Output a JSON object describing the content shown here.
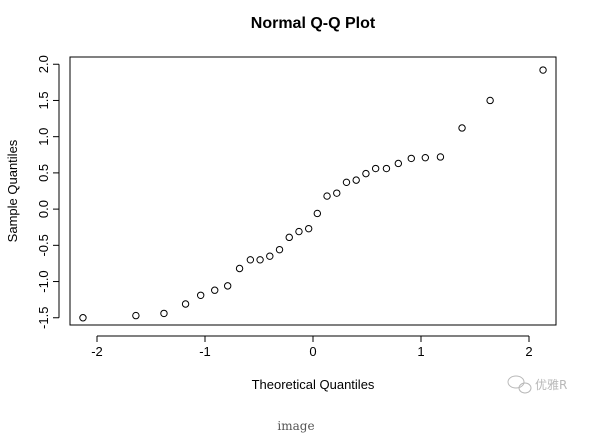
{
  "chart_data": {
    "type": "scatter",
    "title": "Normal Q-Q Plot",
    "xlabel": "Theoretical Quantiles",
    "ylabel": "Sample Quantiles",
    "xlim": [
      -2.25,
      2.25
    ],
    "ylim": [
      -1.6,
      2.1
    ],
    "xticks": [
      -2,
      -1,
      0,
      1,
      2
    ],
    "yticks": [
      -1.5,
      -1.0,
      -0.5,
      0.0,
      0.5,
      1.0,
      1.5,
      2.0
    ],
    "ytick_labels": [
      "-1.5",
      "-1.0",
      "-0.5",
      "0.0",
      "0.5",
      "1.0",
      "1.5",
      "2.0"
    ],
    "grid": false,
    "marker": "open-circle",
    "x": [
      -2.13,
      -1.64,
      -1.38,
      -1.18,
      -1.04,
      -0.91,
      -0.79,
      -0.68,
      -0.58,
      -0.49,
      -0.4,
      -0.31,
      -0.22,
      -0.13,
      -0.04,
      0.04,
      0.13,
      0.22,
      0.31,
      0.4,
      0.49,
      0.58,
      0.68,
      0.79,
      0.91,
      1.04,
      1.18,
      1.38,
      1.64,
      2.13
    ],
    "y": [
      -1.5,
      -1.47,
      -1.44,
      -1.31,
      -1.19,
      -1.12,
      -1.06,
      -0.82,
      -0.7,
      -0.7,
      -0.65,
      -0.56,
      -0.39,
      -0.31,
      -0.27,
      -0.06,
      0.18,
      0.22,
      0.37,
      0.4,
      0.49,
      0.56,
      0.56,
      0.63,
      0.7,
      0.71,
      0.72,
      1.12,
      1.5,
      1.92
    ]
  },
  "watermark": {
    "text": "优雅R",
    "icon": "wechat-icon"
  },
  "caption": "image"
}
